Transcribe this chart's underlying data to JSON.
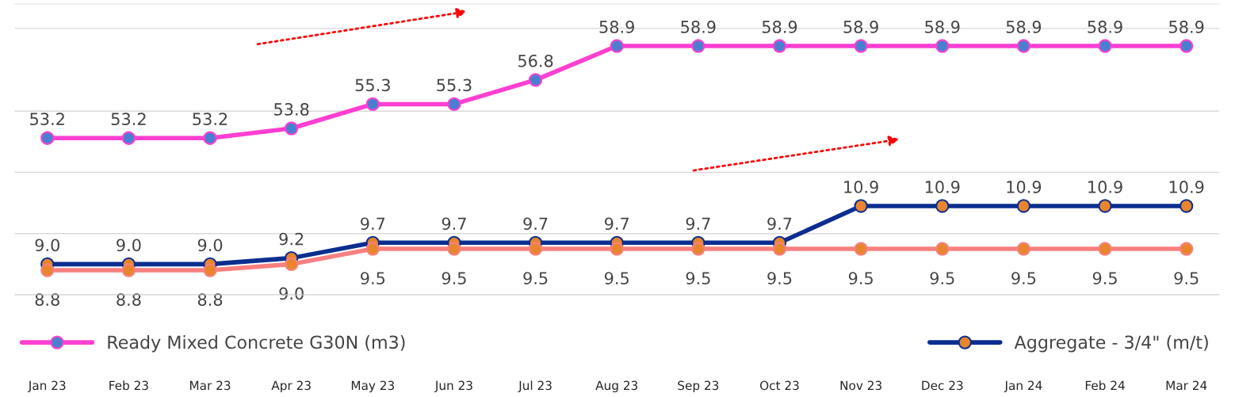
{
  "chart_data": {
    "type": "line",
    "categories": [
      "Jan 23",
      "Feb 23",
      "Mar 23",
      "Apr 23",
      "May 23",
      "Jun 23",
      "Jul 23",
      "Aug 23",
      "Sep 23",
      "Oct 23",
      "Nov 23",
      "Dec 23",
      "Jan 24",
      "Feb 24",
      "Mar 24"
    ],
    "series": [
      {
        "name": "Ready Mixed Concrete G30N (m3)",
        "color": "#ff3fd2",
        "axis": "y2",
        "values": [
          53.2,
          53.2,
          53.2,
          53.8,
          55.3,
          55.3,
          56.8,
          58.9,
          58.9,
          58.9,
          58.9,
          58.9,
          58.9,
          58.9,
          58.9
        ],
        "value_labels": [
          "53.2",
          "53.2",
          "53.2",
          "53.8",
          "55.3",
          "55.3",
          "56.8",
          "58.9",
          "58.9",
          "58.9",
          "58.9",
          "58.9",
          "58.9",
          "58.9",
          "58.9"
        ]
      },
      {
        "name": "Aggregate - 3/4\" (m/t)",
        "color": "#0b2e8f",
        "values": [
          9.0,
          9.0,
          9.0,
          9.2,
          9.7,
          9.7,
          9.7,
          9.7,
          9.7,
          9.7,
          10.9,
          10.9,
          10.9,
          10.9,
          10.9
        ],
        "value_labels": [
          "9.0",
          "9.0",
          "9.0",
          "9.2",
          "9.7",
          "9.7",
          "9.7",
          "9.7",
          "9.7",
          "9.7",
          "10.9",
          "10.9",
          "10.9",
          "10.9",
          "10.9"
        ]
      },
      {
        "color": "#f88080",
        "values": [
          8.8,
          8.8,
          8.8,
          9.0,
          9.5,
          9.5,
          9.5,
          9.5,
          9.5,
          9.5,
          9.5,
          9.5,
          9.5,
          9.5,
          9.5
        ],
        "value_labels": [
          "8.8",
          "8.8",
          "8.8",
          "9.0",
          "9.5",
          "9.5",
          "9.5",
          "9.5",
          "9.5",
          "9.5",
          "9.5",
          "9.5",
          "9.5",
          "9.5",
          "9.5"
        ]
      }
    ],
    "ylim": [
      8,
      17.5
    ],
    "yticks": [
      {
        "value": 8,
        "label": null
      },
      {
        "value": 10,
        "label": null
      },
      {
        "value": 12,
        "label": null
      },
      {
        "value": 14,
        "label": null
      },
      {
        "value": 16.7,
        "label": null
      }
    ],
    "y2lim": [
      43.5,
      61.5
    ],
    "marker": "circle",
    "line_style": "solid",
    "legend": "bottom",
    "grid": "y",
    "tick_labels": "x"
  }
}
